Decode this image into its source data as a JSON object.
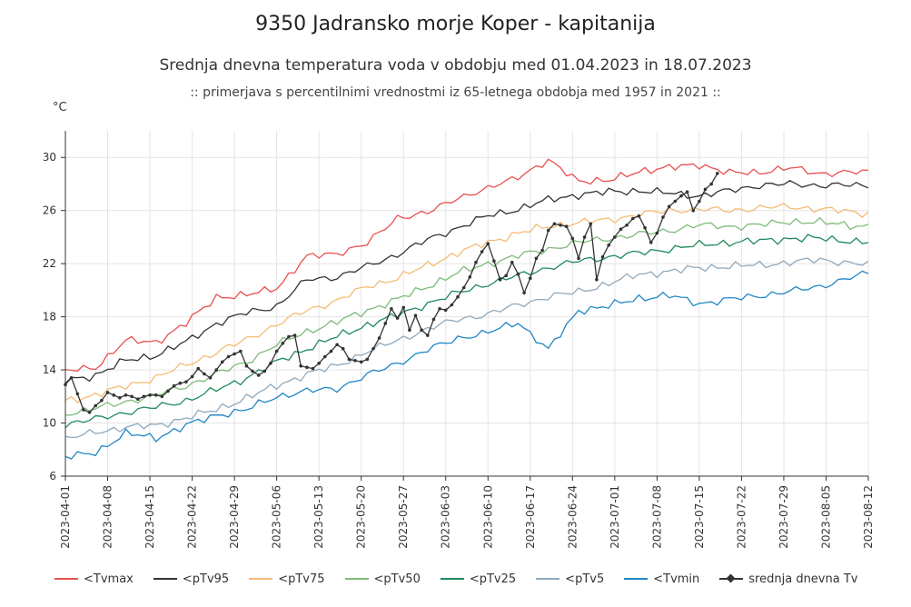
{
  "header": {
    "title": "9350 Jadransko morje Koper - kapitanija",
    "subtitle": "Srednja dnevna temperatura voda v obdobju med 01.04.2023 in 18.07.2023",
    "subtitle2": "::   primerjava s percentilnimi vrednostmi iz 65-letnega obdobja med 1957 in 2021  ::",
    "unit": "°C"
  },
  "chart_data": {
    "type": "line",
    "x_start": "2023-04-01",
    "x_end": "2023-08-12",
    "ylim": [
      6,
      32
    ],
    "yticks": [
      6,
      10,
      14,
      18,
      22,
      26,
      30
    ],
    "xticks": [
      "2023-04-01",
      "2023-04-08",
      "2023-04-15",
      "2023-04-22",
      "2023-04-29",
      "2023-05-06",
      "2023-05-13",
      "2023-05-20",
      "2023-05-27",
      "2023-06-03",
      "2023-06-10",
      "2023-06-17",
      "2023-06-24",
      "2023-07-01",
      "2023-07-08",
      "2023-07-15",
      "2023-07-22",
      "2023-07-29",
      "2023-08-05",
      "2023-08-12"
    ],
    "grid": true,
    "legend_position": "bottom",
    "series": [
      {
        "name": "<Tvmax",
        "color": "#e8504f",
        "anchors": [
          [
            0,
            13.9
          ],
          [
            5,
            14.2
          ],
          [
            10,
            16.2
          ],
          [
            15,
            16.1
          ],
          [
            20,
            17.5
          ],
          [
            25,
            19.5
          ],
          [
            30,
            19.6
          ],
          [
            35,
            20.2
          ],
          [
            40,
            22.5
          ],
          [
            45,
            22.8
          ],
          [
            50,
            23.5
          ],
          [
            55,
            25.5
          ],
          [
            60,
            25.8
          ],
          [
            65,
            27.0
          ],
          [
            70,
            27.6
          ],
          [
            75,
            28.6
          ],
          [
            80,
            29.7
          ],
          [
            85,
            28.3
          ],
          [
            90,
            28.2
          ],
          [
            95,
            29.0
          ],
          [
            100,
            29.2
          ],
          [
            105,
            29.5
          ],
          [
            110,
            28.8
          ],
          [
            115,
            28.9
          ],
          [
            120,
            29.2
          ],
          [
            125,
            28.8
          ],
          [
            133,
            28.9
          ]
        ]
      },
      {
        "name": "<pTv95",
        "color": "#333333",
        "anchors": [
          [
            0,
            13.2
          ],
          [
            5,
            13.6
          ],
          [
            10,
            14.7
          ],
          [
            15,
            15.1
          ],
          [
            20,
            16.1
          ],
          [
            25,
            17.5
          ],
          [
            30,
            18.3
          ],
          [
            35,
            18.8
          ],
          [
            40,
            20.8
          ],
          [
            45,
            21.0
          ],
          [
            50,
            21.8
          ],
          [
            55,
            22.7
          ],
          [
            60,
            23.8
          ],
          [
            65,
            24.7
          ],
          [
            70,
            25.6
          ],
          [
            75,
            26.1
          ],
          [
            80,
            26.8
          ],
          [
            85,
            27.2
          ],
          [
            90,
            27.4
          ],
          [
            95,
            27.5
          ],
          [
            100,
            27.3
          ],
          [
            105,
            27.1
          ],
          [
            110,
            27.5
          ],
          [
            115,
            27.9
          ],
          [
            120,
            28.0
          ],
          [
            125,
            27.9
          ],
          [
            133,
            27.9
          ]
        ]
      },
      {
        "name": "<pTv75",
        "color": "#f5bb73",
        "anchors": [
          [
            0,
            11.7
          ],
          [
            5,
            12.1
          ],
          [
            10,
            12.8
          ],
          [
            15,
            13.4
          ],
          [
            20,
            14.4
          ],
          [
            25,
            15.3
          ],
          [
            30,
            16.3
          ],
          [
            35,
            17.4
          ],
          [
            40,
            18.5
          ],
          [
            45,
            19.2
          ],
          [
            50,
            20.3
          ],
          [
            55,
            20.9
          ],
          [
            60,
            21.9
          ],
          [
            65,
            22.8
          ],
          [
            70,
            23.6
          ],
          [
            75,
            24.3
          ],
          [
            80,
            24.8
          ],
          [
            85,
            25.1
          ],
          [
            90,
            25.3
          ],
          [
            95,
            25.7
          ],
          [
            100,
            26.0
          ],
          [
            105,
            26.1
          ],
          [
            110,
            26.0
          ],
          [
            115,
            26.2
          ],
          [
            120,
            26.3
          ],
          [
            125,
            26.1
          ],
          [
            133,
            25.8
          ]
        ]
      },
      {
        "name": "<pTv50",
        "color": "#7dbb7a",
        "anchors": [
          [
            0,
            10.7
          ],
          [
            5,
            11.1
          ],
          [
            10,
            11.6
          ],
          [
            15,
            12.1
          ],
          [
            20,
            12.8
          ],
          [
            25,
            13.7
          ],
          [
            30,
            14.6
          ],
          [
            35,
            15.9
          ],
          [
            40,
            16.9
          ],
          [
            45,
            17.6
          ],
          [
            50,
            18.5
          ],
          [
            55,
            19.3
          ],
          [
            60,
            20.3
          ],
          [
            65,
            21.3
          ],
          [
            70,
            22.0
          ],
          [
            75,
            22.6
          ],
          [
            80,
            23.1
          ],
          [
            85,
            23.6
          ],
          [
            90,
            23.9
          ],
          [
            95,
            24.2
          ],
          [
            100,
            24.5
          ],
          [
            105,
            24.9
          ],
          [
            110,
            24.8
          ],
          [
            115,
            24.9
          ],
          [
            120,
            25.2
          ],
          [
            125,
            25.1
          ],
          [
            133,
            24.8
          ]
        ]
      },
      {
        "name": "<pTv25",
        "color": "#1f8a5b",
        "anchors": [
          [
            0,
            9.9
          ],
          [
            5,
            10.3
          ],
          [
            10,
            10.8
          ],
          [
            15,
            11.2
          ],
          [
            20,
            11.7
          ],
          [
            25,
            12.5
          ],
          [
            30,
            13.4
          ],
          [
            35,
            14.6
          ],
          [
            40,
            15.6
          ],
          [
            45,
            16.5
          ],
          [
            50,
            17.4
          ],
          [
            55,
            18.1
          ],
          [
            60,
            19.0
          ],
          [
            65,
            19.8
          ],
          [
            70,
            20.5
          ],
          [
            75,
            21.1
          ],
          [
            80,
            21.7
          ],
          [
            85,
            22.2
          ],
          [
            90,
            22.5
          ],
          [
            95,
            22.8
          ],
          [
            100,
            23.1
          ],
          [
            105,
            23.4
          ],
          [
            110,
            23.6
          ],
          [
            115,
            23.7
          ],
          [
            120,
            23.9
          ],
          [
            125,
            23.9
          ],
          [
            133,
            23.6
          ]
        ]
      },
      {
        "name": "<pTv5",
        "color": "#8fa9bd",
        "anchors": [
          [
            0,
            8.8
          ],
          [
            5,
            9.3
          ],
          [
            10,
            9.7
          ],
          [
            15,
            9.8
          ],
          [
            20,
            10.4
          ],
          [
            25,
            11.0
          ],
          [
            30,
            11.9
          ],
          [
            35,
            12.8
          ],
          [
            40,
            13.7
          ],
          [
            45,
            14.3
          ],
          [
            50,
            15.4
          ],
          [
            55,
            16.2
          ],
          [
            60,
            17.1
          ],
          [
            65,
            17.8
          ],
          [
            70,
            18.2
          ],
          [
            75,
            18.9
          ],
          [
            80,
            19.5
          ],
          [
            85,
            19.9
          ],
          [
            90,
            20.5
          ],
          [
            95,
            21.2
          ],
          [
            100,
            21.4
          ],
          [
            105,
            21.7
          ],
          [
            110,
            21.8
          ],
          [
            115,
            21.9
          ],
          [
            120,
            22.1
          ],
          [
            125,
            22.3
          ],
          [
            133,
            21.9
          ]
        ]
      },
      {
        "name": "<Tvmin",
        "color": "#1f86c6",
        "anchors": [
          [
            0,
            7.4
          ],
          [
            5,
            7.8
          ],
          [
            10,
            9.2
          ],
          [
            15,
            8.9
          ],
          [
            20,
            9.8
          ],
          [
            25,
            10.6
          ],
          [
            30,
            11.0
          ],
          [
            35,
            12.0
          ],
          [
            40,
            12.4
          ],
          [
            45,
            12.6
          ],
          [
            50,
            13.6
          ],
          [
            55,
            14.5
          ],
          [
            60,
            15.5
          ],
          [
            65,
            16.4
          ],
          [
            70,
            16.8
          ],
          [
            75,
            17.6
          ],
          [
            80,
            15.5
          ],
          [
            85,
            18.5
          ],
          [
            90,
            18.8
          ],
          [
            95,
            19.4
          ],
          [
            100,
            19.6
          ],
          [
            105,
            19.0
          ],
          [
            110,
            19.3
          ],
          [
            115,
            19.6
          ],
          [
            120,
            19.9
          ],
          [
            125,
            20.3
          ],
          [
            133,
            21.3
          ]
        ]
      },
      {
        "name": "srednja dnevna Tv",
        "color": "#333333",
        "marker": true,
        "values": [
          12.9,
          13.4,
          12.2,
          11.0,
          10.8,
          11.3,
          11.7,
          12.3,
          12.1,
          11.9,
          12.1,
          12.0,
          11.8,
          12.0,
          12.1,
          12.1,
          12.0,
          12.4,
          12.8,
          13.0,
          13.1,
          13.5,
          14.1,
          13.7,
          13.4,
          14.0,
          14.6,
          15.0,
          15.2,
          15.4,
          14.3,
          13.9,
          13.6,
          13.9,
          14.5,
          15.4,
          16.0,
          16.5,
          16.6,
          14.3,
          14.2,
          14.1,
          14.5,
          15.0,
          15.4,
          15.9,
          15.6,
          14.8,
          14.7,
          14.6,
          14.8,
          15.6,
          16.4,
          17.5,
          18.6,
          17.9,
          18.7,
          17.0,
          18.1,
          17.0,
          16.6,
          17.8,
          18.6,
          18.5,
          18.9,
          19.5,
          20.2,
          21.0,
          22.1,
          22.9,
          23.5,
          22.2,
          20.8,
          21.1,
          22.1,
          21.2,
          19.8,
          20.9,
          22.4,
          23.0,
          24.5,
          25.0,
          24.9,
          24.8,
          23.9,
          22.4,
          24.0,
          25.0,
          20.8,
          22.5,
          23.4,
          24.0,
          24.6,
          24.9,
          25.4,
          25.6,
          24.7,
          23.6,
          24.3,
          25.5,
          26.3,
          26.7,
          27.1,
          27.4,
          26.0,
          26.7,
          27.6,
          28.0,
          28.8
        ]
      }
    ]
  }
}
